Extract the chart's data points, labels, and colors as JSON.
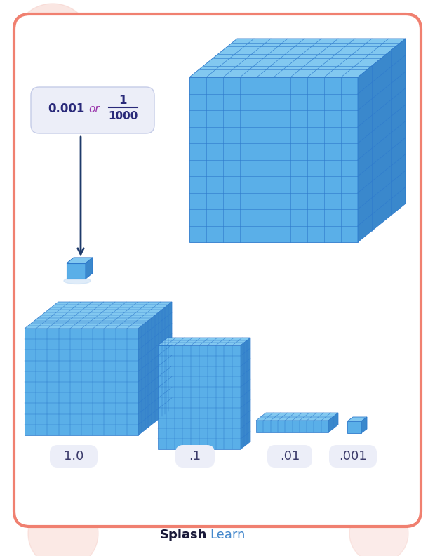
{
  "bg_color": "#ffffff",
  "border_color": "#f08070",
  "blue_face": "#5aafe8",
  "blue_top": "#82c8f0",
  "blue_side": "#3a88cc",
  "grid_color": "#2e7acc",
  "label_bg": "#eceef8",
  "label_text_color": "#3a3a6a",
  "annotation_color": "#1e3a6a",
  "annotation_text": "#2a2a7a",
  "fraction_or_color": "#9933aa",
  "splashlearn_bold_color": "#1a1a3a",
  "splashlearn_light_color": "#4488cc",
  "decimal_text": "0.001 or",
  "fraction_num": "1",
  "fraction_den": "1000",
  "labels": [
    "1.0",
    ".1",
    ".01",
    ".001"
  ],
  "circle_color": "#f5c8c0"
}
